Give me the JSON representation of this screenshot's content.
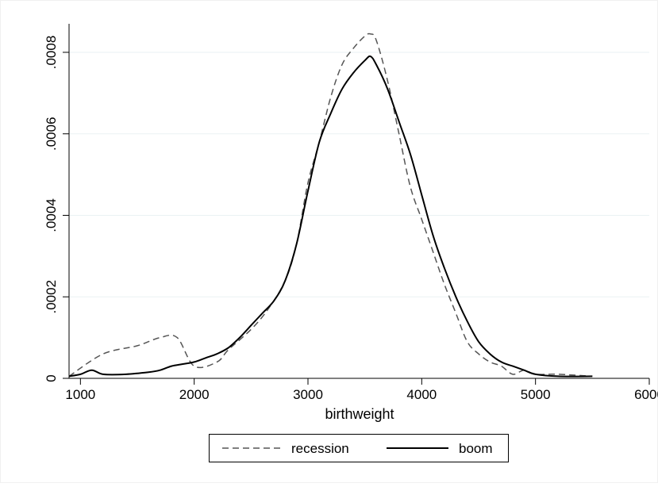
{
  "chart_data": {
    "type": "line",
    "title": "",
    "xlabel": "birthweight",
    "ylabel": "",
    "xlim": [
      900,
      6000
    ],
    "ylim": [
      0,
      0.00087
    ],
    "x_ticks": [
      1000,
      2000,
      3000,
      4000,
      5000,
      6000
    ],
    "x_tick_labels": [
      "1000",
      "2000",
      "3000",
      "4000",
      "5000",
      "6000"
    ],
    "y_ticks": [
      0,
      0.0002,
      0.0004,
      0.0006,
      0.0008
    ],
    "y_tick_labels": [
      "0",
      ".0002",
      ".0004",
      ".0006",
      ".0008"
    ],
    "grid": true,
    "legend_position": "bottom",
    "colors": {
      "recession": "#555555",
      "boom": "#000000",
      "grid": "#eaf2f3"
    },
    "series": [
      {
        "name": "recession",
        "style": "dashed",
        "x": [
          900,
          1200,
          1500,
          1700,
          1850,
          2000,
          2200,
          2300,
          2500,
          2650,
          2800,
          2900,
          3000,
          3100,
          3200,
          3300,
          3400,
          3500,
          3550,
          3600,
          3700,
          3800,
          3900,
          4000,
          4100,
          4200,
          4300,
          4400,
          4500,
          4600,
          4700,
          4800,
          4900,
          5000,
          5200,
          5500
        ],
        "values": [
          5e-06,
          6e-05,
          8e-05,
          0.0001,
          0.0001,
          3e-05,
          4e-05,
          7e-05,
          0.00012,
          0.00017,
          0.00024,
          0.00033,
          0.00048,
          0.00058,
          0.00069,
          0.00077,
          0.00081,
          0.00084,
          0.000845,
          0.00083,
          0.00073,
          0.0006,
          0.00047,
          0.00039,
          0.00031,
          0.00023,
          0.00016,
          9e-05,
          6e-05,
          4e-05,
          3e-05,
          1e-05,
          2e-05,
          1e-05,
          1e-05,
          5e-06
        ]
      },
      {
        "name": "boom",
        "style": "solid",
        "x": [
          900,
          1000,
          1100,
          1200,
          1400,
          1600,
          1700,
          1800,
          1900,
          2000,
          2100,
          2200,
          2300,
          2400,
          2500,
          2600,
          2700,
          2800,
          2900,
          3000,
          3100,
          3200,
          3300,
          3400,
          3500,
          3550,
          3600,
          3700,
          3800,
          3900,
          4000,
          4100,
          4200,
          4300,
          4400,
          4500,
          4600,
          4700,
          4800,
          4900,
          5000,
          5200,
          5500
        ],
        "values": [
          5e-06,
          1e-05,
          2e-05,
          1e-05,
          1e-05,
          1.5e-05,
          2e-05,
          3e-05,
          3.5e-05,
          4e-05,
          5e-05,
          6e-05,
          7.5e-05,
          0.0001,
          0.00013,
          0.00016,
          0.00019,
          0.00024,
          0.00033,
          0.00046,
          0.00058,
          0.00065,
          0.00071,
          0.00075,
          0.00078,
          0.00079,
          0.00077,
          0.00071,
          0.00063,
          0.00055,
          0.00045,
          0.00035,
          0.00027,
          0.0002,
          0.00014,
          9e-05,
          6e-05,
          4e-05,
          3e-05,
          2e-05,
          1e-05,
          5e-06,
          5e-06
        ]
      }
    ]
  }
}
